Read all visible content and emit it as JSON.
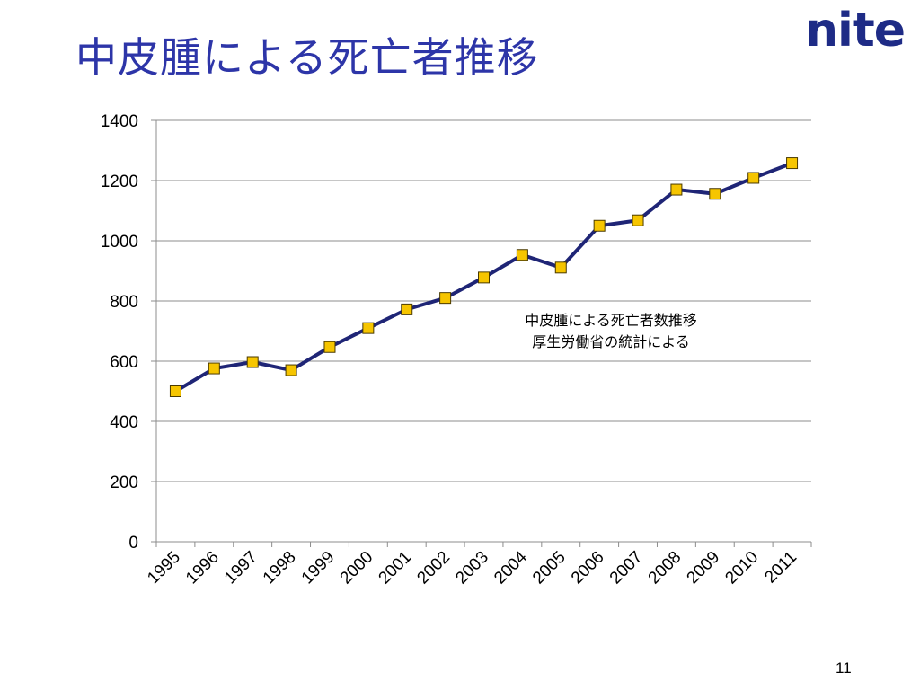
{
  "slide": {
    "title": "中皮腫による死亡者推移",
    "logo_text": "nite",
    "page_number": "11"
  },
  "colors": {
    "title": "#2d35a8",
    "logo_dark": "#1e2b86",
    "logo_light": "#2e7bd6",
    "line": "#1f2576",
    "marker_fill": "#f6c500",
    "marker_stroke": "#4a3a00",
    "gridline": "#8c8c8c"
  },
  "chart_data": {
    "type": "line",
    "categories": [
      "1995",
      "1996",
      "1997",
      "1998",
      "1999",
      "2000",
      "2001",
      "2002",
      "2003",
      "2004",
      "2005",
      "2006",
      "2007",
      "2008",
      "2009",
      "2010",
      "2011"
    ],
    "series": [
      {
        "values": [
          500,
          576,
          597,
          570,
          647,
          710,
          772,
          810,
          878,
          953,
          911,
          1050,
          1068,
          1170,
          1156,
          1209,
          1258
        ]
      }
    ],
    "ylim": [
      0,
      1400
    ],
    "yticks": [
      0,
      200,
      400,
      600,
      800,
      1000,
      1200,
      1400
    ],
    "grid": true,
    "legend": "none",
    "marker": "square",
    "annotation": [
      "中皮腫による死亡者数推移",
      "厚生労働省の統計による"
    ],
    "xlabel": "",
    "ylabel": ""
  }
}
